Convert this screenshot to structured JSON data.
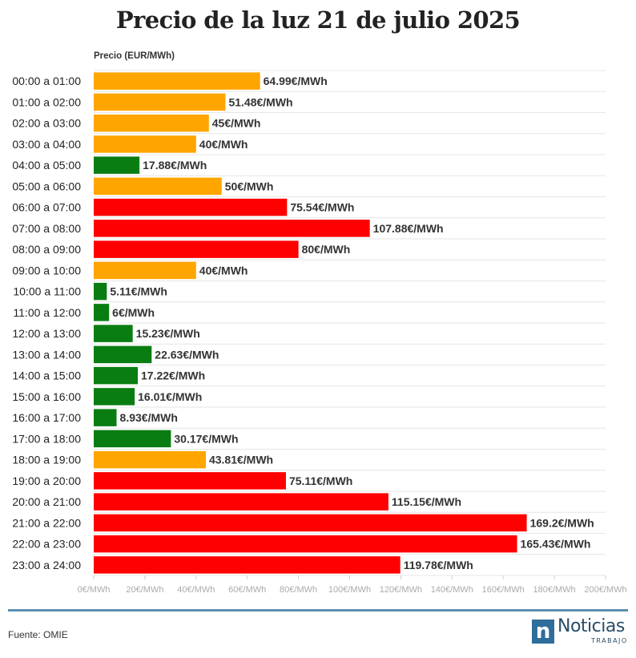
{
  "chart_data": {
    "type": "bar",
    "orientation": "horizontal",
    "title": "Precio de la luz 21 de julio 2025",
    "xlabel": "Precio (EUR/MWh)",
    "xlim": [
      0,
      200
    ],
    "grid": true,
    "value_suffix": "€/MWh",
    "x_ticks": [
      {
        "value": 0,
        "label": "0€/MWh"
      },
      {
        "value": 20,
        "label": "20€/MWh"
      },
      {
        "value": 40,
        "label": "40€/MWh"
      },
      {
        "value": 60,
        "label": "60€/MWh"
      },
      {
        "value": 80,
        "label": "80€/MWh"
      },
      {
        "value": 100,
        "label": "100€/MWh"
      },
      {
        "value": 120,
        "label": "120€/MWh"
      },
      {
        "value": 140,
        "label": "140€/MWh"
      },
      {
        "value": 160,
        "label": "160€/MWh"
      },
      {
        "value": 180,
        "label": "180€/MWh"
      },
      {
        "value": 200,
        "label": "200€/MWh"
      }
    ],
    "colors": {
      "low": "#0a7d12",
      "mid": "#ffa500",
      "high": "#ff0000"
    },
    "bars": [
      {
        "category": "00:00 a 01:00",
        "value": 64.99,
        "label": "64.99€/MWh",
        "level": "mid"
      },
      {
        "category": "01:00 a 02:00",
        "value": 51.48,
        "label": "51.48€/MWh",
        "level": "mid"
      },
      {
        "category": "02:00 a 03:00",
        "value": 45,
        "label": "45€/MWh",
        "level": "mid"
      },
      {
        "category": "03:00 a 04:00",
        "value": 40,
        "label": "40€/MWh",
        "level": "mid"
      },
      {
        "category": "04:00 a 05:00",
        "value": 17.88,
        "label": "17.88€/MWh",
        "level": "low"
      },
      {
        "category": "05:00 a 06:00",
        "value": 50,
        "label": "50€/MWh",
        "level": "mid"
      },
      {
        "category": "06:00 a 07:00",
        "value": 75.54,
        "label": "75.54€/MWh",
        "level": "high"
      },
      {
        "category": "07:00 a 08:00",
        "value": 107.88,
        "label": "107.88€/MWh",
        "level": "high"
      },
      {
        "category": "08:00 a 09:00",
        "value": 80,
        "label": "80€/MWh",
        "level": "high"
      },
      {
        "category": "09:00 a 10:00",
        "value": 40,
        "label": "40€/MWh",
        "level": "mid"
      },
      {
        "category": "10:00 a 11:00",
        "value": 5.11,
        "label": "5.11€/MWh",
        "level": "low"
      },
      {
        "category": "11:00 a 12:00",
        "value": 6,
        "label": "6€/MWh",
        "level": "low"
      },
      {
        "category": "12:00 a 13:00",
        "value": 15.23,
        "label": "15.23€/MWh",
        "level": "low"
      },
      {
        "category": "13:00 a 14:00",
        "value": 22.63,
        "label": "22.63€/MWh",
        "level": "low"
      },
      {
        "category": "14:00 a 15:00",
        "value": 17.22,
        "label": "17.22€/MWh",
        "level": "low"
      },
      {
        "category": "15:00 a 16:00",
        "value": 16.01,
        "label": "16.01€/MWh",
        "level": "low"
      },
      {
        "category": "16:00 a 17:00",
        "value": 8.93,
        "label": "8.93€/MWh",
        "level": "low"
      },
      {
        "category": "17:00 a 18:00",
        "value": 30.17,
        "label": "30.17€/MWh",
        "level": "low"
      },
      {
        "category": "18:00 a 19:00",
        "value": 43.81,
        "label": "43.81€/MWh",
        "level": "mid"
      },
      {
        "category": "19:00 a 20:00",
        "value": 75.11,
        "label": "75.11€/MWh",
        "level": "high"
      },
      {
        "category": "20:00 a 21:00",
        "value": 115.15,
        "label": "115.15€/MWh",
        "level": "high"
      },
      {
        "category": "21:00 a 22:00",
        "value": 169.2,
        "label": "169.2€/MWh",
        "level": "high"
      },
      {
        "category": "22:00 a 23:00",
        "value": 165.43,
        "label": "165.43€/MWh",
        "level": "high"
      },
      {
        "category": "23:00 a 24:00",
        "value": 119.78,
        "label": "119.78€/MWh",
        "level": "high"
      }
    ]
  },
  "footer": {
    "source": "Fuente: OMIE",
    "logo_mark": "n",
    "logo_word": "Noticias",
    "logo_sub": "TRABAJO"
  }
}
